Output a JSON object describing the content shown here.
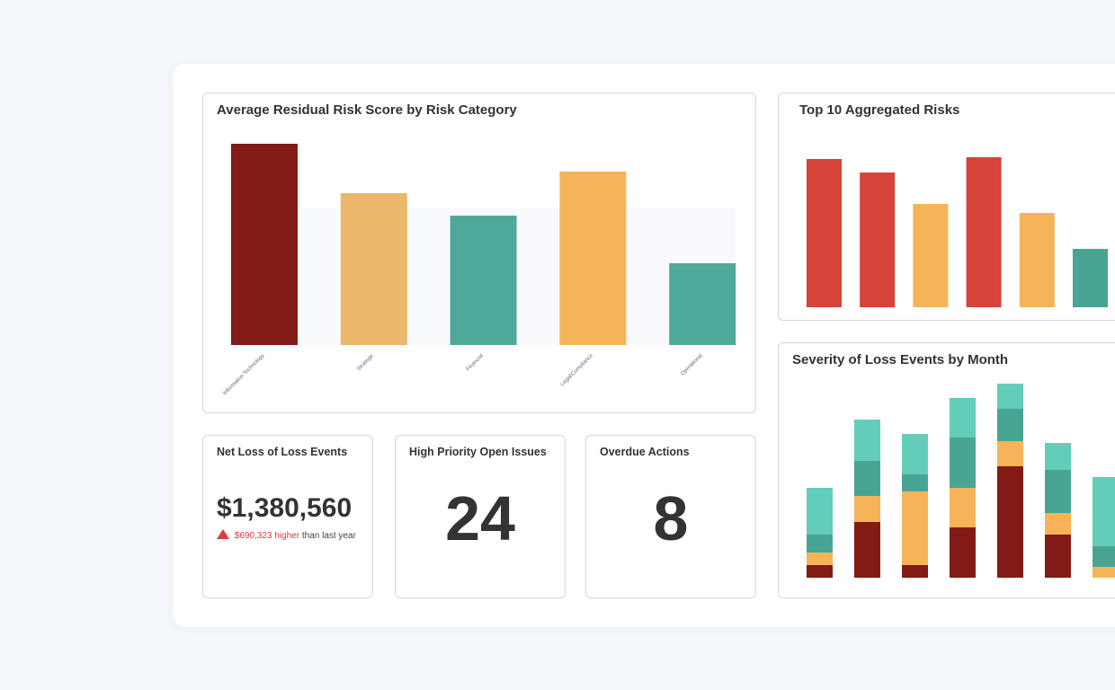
{
  "cards": {
    "risk_category": {
      "title": "Average Residual Risk Score by Risk Category"
    },
    "top10": {
      "title": "Top 10 Aggregated Risks"
    },
    "severity": {
      "title": "Severity of Loss Events by Month"
    },
    "net_loss": {
      "title": "Net Loss of Loss Events",
      "value": "$1,380,560",
      "delta": "$690,323 higher",
      "delta_suffix": "than last year",
      "delta_icon": "triangle-up-icon"
    },
    "open_issues": {
      "title": "High Priority Open Issues",
      "value": "24"
    },
    "overdue": {
      "title": "Overdue Actions",
      "value": "8"
    }
  },
  "colors": {
    "dark_red": "#821a16",
    "red": "#d64339",
    "amber": "#ebb76a",
    "orange": "#f5b458",
    "teal": "#4fa99a",
    "dark_teal": "#48a593",
    "light_teal": "#64ccba",
    "delta_red": "#e03a3a"
  },
  "chart_data": [
    {
      "type": "bar",
      "title": "Average Residual Risk Score by Risk Category",
      "categories": [
        "Information Technology",
        "Strategic",
        "Financial",
        "Legal/Compliance",
        "Operational"
      ],
      "values": [
        224,
        169,
        144,
        193,
        91
      ],
      "colors": [
        "#821a16",
        "#ebb76a",
        "#4fa99a",
        "#f5b458",
        "#4fa99a"
      ],
      "grid": false,
      "legend": "none"
    },
    {
      "type": "bar",
      "title": "Top 10 Aggregated Risks",
      "values": [
        165,
        150,
        115,
        167,
        105,
        65
      ],
      "colors": [
        "#d64339",
        "#d64339",
        "#f5b458",
        "#d64339",
        "#f5b458",
        "#48a593"
      ],
      "grid": false,
      "legend": "none"
    },
    {
      "type": "bar",
      "stacked": true,
      "title": "Severity of Loss Events by Month",
      "series": [
        {
          "color": "#821a16",
          "values": [
            14,
            62,
            14,
            56,
            124,
            48,
            0
          ]
        },
        {
          "color": "#f5b458",
          "values": [
            14,
            29,
            82,
            44,
            28,
            24,
            12
          ]
        },
        {
          "color": "#48a593",
          "values": [
            20,
            39,
            19,
            56,
            36,
            48,
            23
          ]
        },
        {
          "color": "#64ccba",
          "values": [
            52,
            46,
            45,
            44,
            28,
            30,
            77
          ]
        }
      ],
      "grid": false,
      "legend": "none"
    }
  ]
}
